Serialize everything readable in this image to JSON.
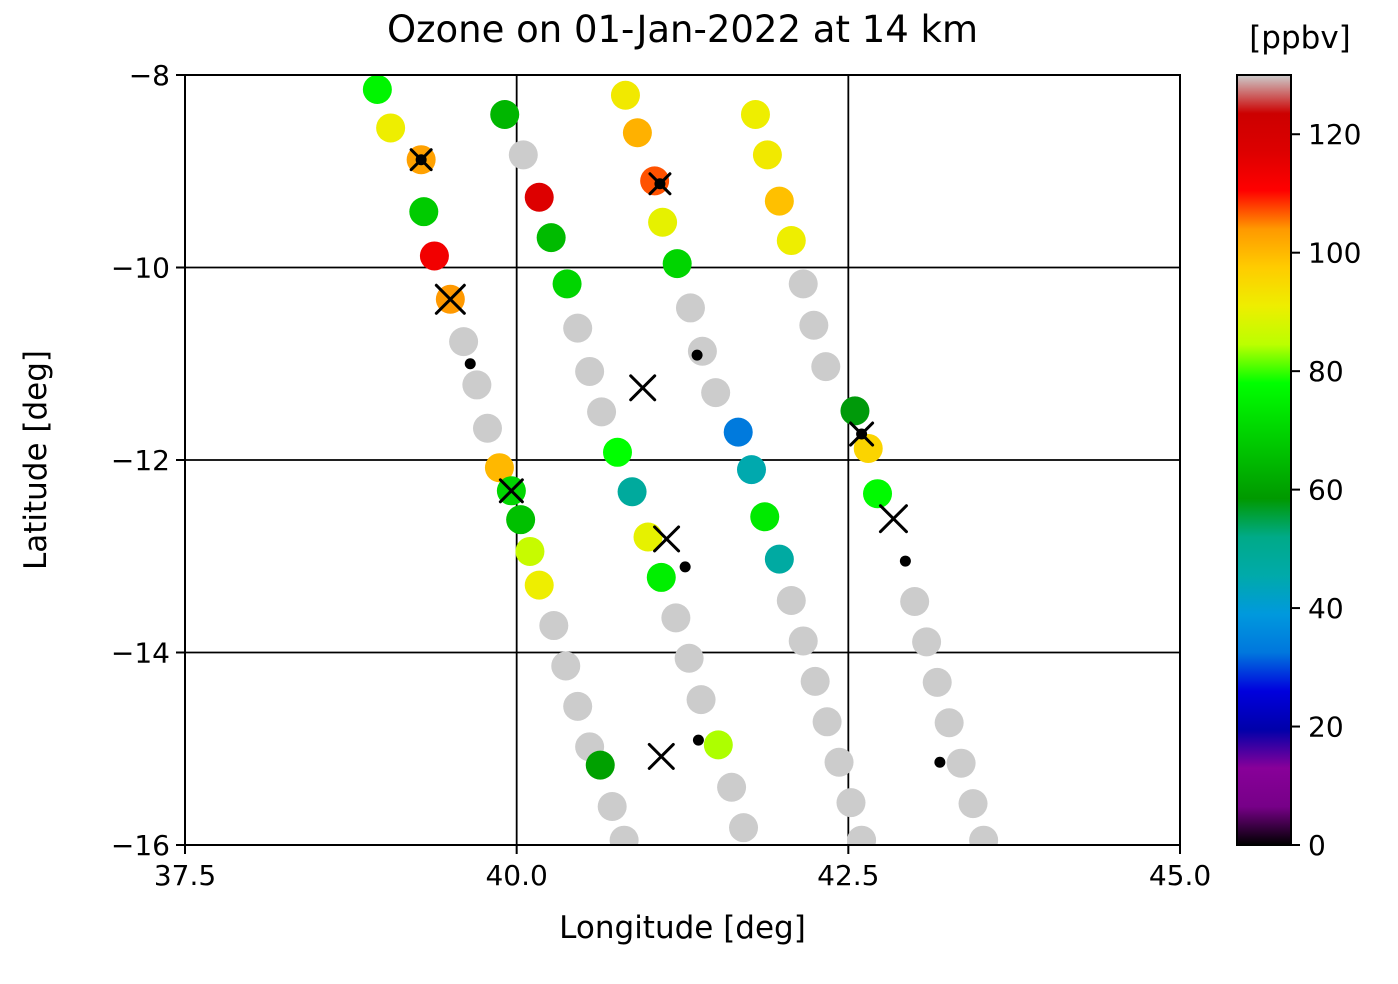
{
  "chart_data": {
    "type": "scatter",
    "title": "Ozone on 01-Jan-2022 at 14 km",
    "xlabel": "Longitude [deg]",
    "ylabel": "Latitude [deg]",
    "xlim": [
      37.5,
      45.0
    ],
    "ylim": [
      -16,
      -8
    ],
    "xticks": [
      37.5,
      40.0,
      42.5,
      45.0
    ],
    "xtick_labels": [
      "37.5",
      "40.0",
      "42.5",
      "45.0"
    ],
    "yticks": [
      -8,
      -10,
      -12,
      -14,
      -16
    ],
    "ytick_labels": [
      "−8",
      "−10",
      "−12",
      "−14",
      "−16"
    ],
    "grid": true,
    "colorbar": {
      "label": "[ppbv]",
      "ticks": [
        0,
        20,
        40,
        60,
        80,
        100,
        120
      ],
      "tick_labels": [
        "0",
        "20",
        "40",
        "60",
        "80",
        "100",
        "120"
      ],
      "vmin": 0,
      "vmax": 130,
      "colormap": "nipy_spectral",
      "missing_color": "#cccccc"
    },
    "series": [
      {
        "name": "ozone_ppbv",
        "marker": "circle",
        "units": "ppbv",
        "points": [
          [
            38.95,
            -8.15,
            76
          ],
          [
            39.05,
            -8.55,
            91
          ],
          [
            39.28,
            -8.88,
            103
          ],
          [
            39.3,
            -9.42,
            68
          ],
          [
            39.38,
            -9.88,
            113
          ],
          [
            39.5,
            -10.33,
            104
          ],
          [
            39.87,
            -12.08,
            100
          ],
          [
            39.96,
            -12.32,
            70
          ],
          [
            40.03,
            -12.62,
            66
          ],
          [
            40.1,
            -12.95,
            86
          ],
          [
            40.17,
            -13.3,
            91
          ],
          [
            40.63,
            -15.17,
            60
          ],
          [
            39.91,
            -8.41,
            64
          ],
          [
            40.17,
            -9.27,
            117
          ],
          [
            40.26,
            -9.69,
            65
          ],
          [
            40.38,
            -10.17,
            70
          ],
          [
            40.76,
            -11.92,
            78
          ],
          [
            40.87,
            -12.33,
            48
          ],
          [
            40.99,
            -12.8,
            90
          ],
          [
            41.09,
            -13.22,
            75
          ],
          [
            41.52,
            -14.96,
            84
          ],
          [
            40.82,
            -8.21,
            92
          ],
          [
            40.91,
            -8.6,
            101
          ],
          [
            41.04,
            -9.1,
            107
          ],
          [
            41.1,
            -9.53,
            90
          ],
          [
            41.21,
            -9.96,
            70
          ],
          [
            41.67,
            -11.71,
            33
          ],
          [
            41.77,
            -12.1,
            45
          ],
          [
            41.87,
            -12.59,
            74
          ],
          [
            41.98,
            -13.03,
            47
          ],
          [
            41.8,
            -8.41,
            91
          ],
          [
            41.89,
            -8.83,
            92
          ],
          [
            41.98,
            -9.31,
            99
          ],
          [
            42.07,
            -9.72,
            91
          ],
          [
            42.55,
            -11.49,
            58
          ],
          [
            42.65,
            -11.88,
            96
          ],
          [
            42.72,
            -12.35,
            77
          ]
        ]
      },
      {
        "name": "missing",
        "marker": "circle",
        "color": "#cccccc",
        "points": [
          [
            39.6,
            -10.77
          ],
          [
            39.7,
            -11.22
          ],
          [
            39.78,
            -11.67
          ],
          [
            40.28,
            -13.72
          ],
          [
            40.37,
            -14.14
          ],
          [
            40.46,
            -14.56
          ],
          [
            40.55,
            -14.98
          ],
          [
            40.72,
            -15.6
          ],
          [
            40.81,
            -15.95
          ],
          [
            40.05,
            -8.83
          ],
          [
            40.46,
            -10.63
          ],
          [
            40.55,
            -11.08
          ],
          [
            40.64,
            -11.5
          ],
          [
            41.2,
            -13.64
          ],
          [
            41.3,
            -14.06
          ],
          [
            41.39,
            -14.49
          ],
          [
            41.62,
            -15.4
          ],
          [
            41.71,
            -15.82
          ],
          [
            41.31,
            -10.42
          ],
          [
            41.4,
            -10.87
          ],
          [
            41.5,
            -11.3
          ],
          [
            42.07,
            -13.46
          ],
          [
            42.16,
            -13.88
          ],
          [
            42.25,
            -14.3
          ],
          [
            42.34,
            -14.72
          ],
          [
            42.43,
            -15.14
          ],
          [
            42.52,
            -15.56
          ],
          [
            42.6,
            -15.95
          ],
          [
            42.16,
            -10.17
          ],
          [
            42.24,
            -10.6
          ],
          [
            42.33,
            -11.03
          ],
          [
            43.0,
            -13.47
          ],
          [
            43.09,
            -13.89
          ],
          [
            43.17,
            -14.31
          ],
          [
            43.26,
            -14.73
          ],
          [
            43.35,
            -15.15
          ],
          [
            43.44,
            -15.57
          ],
          [
            43.52,
            -15.95
          ]
        ]
      },
      {
        "name": "cross_markers",
        "marker": "x",
        "color": "#000000",
        "points": [
          [
            39.28,
            -8.88,
            20
          ],
          [
            39.5,
            -10.33,
            28
          ],
          [
            41.08,
            -9.13,
            20
          ],
          [
            40.95,
            -11.25,
            24
          ],
          [
            39.96,
            -12.32,
            22
          ],
          [
            41.13,
            -12.82,
            24
          ],
          [
            42.6,
            -11.73,
            22
          ],
          [
            42.84,
            -12.61,
            26
          ],
          [
            41.09,
            -15.08,
            24
          ]
        ]
      },
      {
        "name": "small_dots",
        "marker": "dot",
        "color": "#000000",
        "points": [
          [
            39.28,
            -8.88
          ],
          [
            41.08,
            -9.13
          ],
          [
            39.65,
            -11.0
          ],
          [
            41.36,
            -10.91
          ],
          [
            42.6,
            -11.73
          ],
          [
            41.27,
            -13.11
          ],
          [
            42.93,
            -13.05
          ],
          [
            41.37,
            -14.91
          ],
          [
            43.19,
            -15.14
          ]
        ]
      }
    ]
  }
}
